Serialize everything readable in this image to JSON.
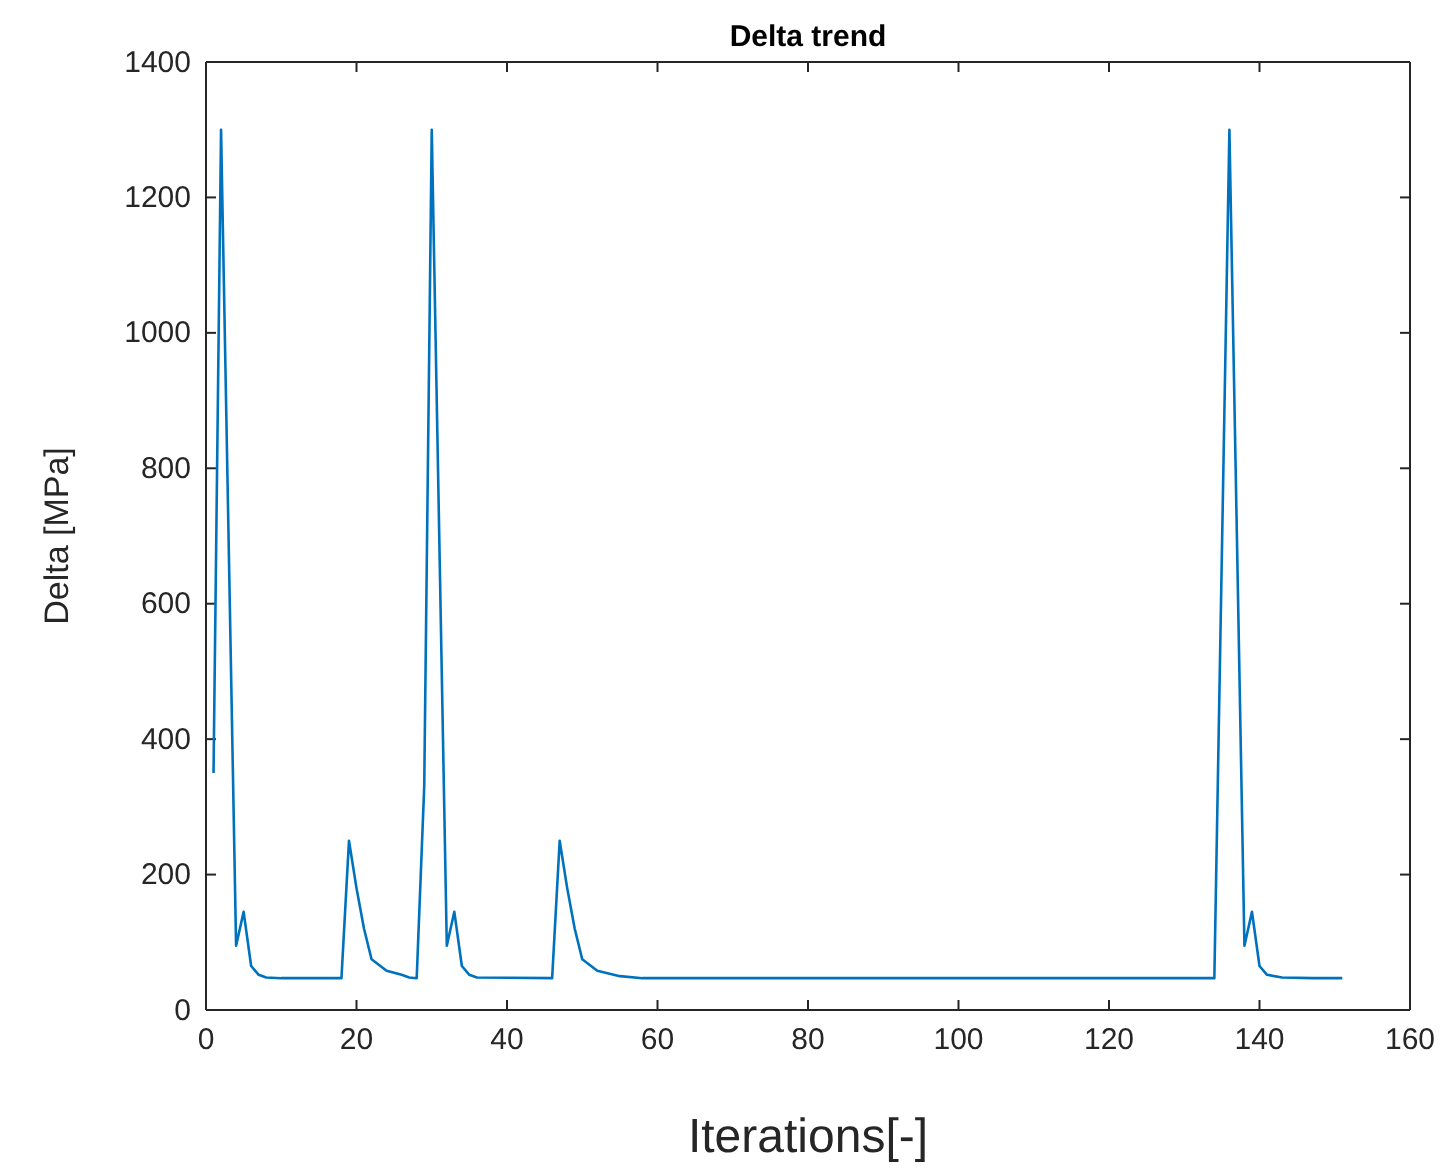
{
  "chart_data": {
    "type": "line",
    "title": "Delta trend",
    "xlabel": "Iterations[-]",
    "ylabel": "Delta [MPa]",
    "x": [
      1,
      2,
      4,
      5,
      6,
      7,
      8,
      10,
      18,
      19,
      20,
      21,
      22,
      24,
      26,
      27,
      28,
      29,
      30,
      32,
      33,
      34,
      35,
      36,
      46,
      47,
      48,
      49,
      50,
      52,
      55,
      58,
      134,
      136,
      138,
      139,
      140,
      141,
      143,
      147,
      151
    ],
    "series": [
      {
        "color": "#0072bd",
        "values": [
          350,
          1300,
          95,
          145,
          65,
          52,
          48,
          47,
          47,
          250,
          180,
          120,
          75,
          58,
          52,
          48,
          47,
          330,
          1300,
          95,
          145,
          65,
          52,
          48,
          47,
          250,
          180,
          120,
          75,
          58,
          50,
          47,
          47,
          1300,
          95,
          145,
          65,
          52,
          48,
          47,
          47
        ]
      }
    ],
    "xlim": [
      0,
      160
    ],
    "xticks": [
      0,
      20,
      40,
      60,
      80,
      100,
      120,
      140,
      160
    ],
    "ylim": [
      0,
      1400
    ],
    "yticks": [
      0,
      200,
      400,
      600,
      800,
      1000,
      1200,
      1400
    ],
    "marker": "none",
    "line_style": "solid"
  }
}
